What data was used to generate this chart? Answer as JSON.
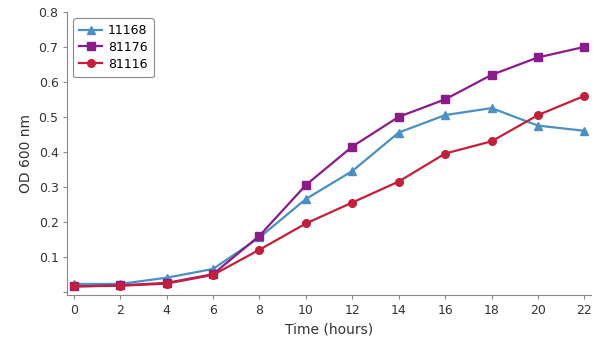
{
  "title": "",
  "xlabel": "Time (hours)",
  "ylabel": "OD 600 nm",
  "xlim": [
    -0.3,
    22.3
  ],
  "ylim": [
    -0.01,
    0.8
  ],
  "xticks": [
    0,
    2,
    4,
    6,
    8,
    10,
    12,
    14,
    16,
    18,
    20,
    22
  ],
  "yticks": [
    0.0,
    0.1,
    0.2,
    0.3,
    0.4,
    0.5,
    0.6,
    0.7,
    0.8
  ],
  "ytick_labels": [
    "",
    "0.1",
    "0.2",
    "0.3",
    "0.4",
    "0.5",
    "0.6",
    "0.7",
    "0.8"
  ],
  "series": [
    {
      "label": "11168",
      "color": "#4a90c4",
      "marker": "^",
      "x": [
        0,
        2,
        4,
        6,
        8,
        10,
        12,
        14,
        16,
        18,
        20,
        22
      ],
      "y": [
        0.022,
        0.022,
        0.04,
        0.065,
        0.155,
        0.265,
        0.345,
        0.455,
        0.505,
        0.525,
        0.475,
        0.46
      ]
    },
    {
      "label": "81176",
      "color": "#8b1a8b",
      "marker": "s",
      "x": [
        0,
        2,
        4,
        6,
        8,
        10,
        12,
        14,
        16,
        18,
        20,
        22
      ],
      "y": [
        0.015,
        0.018,
        0.025,
        0.05,
        0.16,
        0.305,
        0.415,
        0.5,
        0.55,
        0.62,
        0.67,
        0.7
      ]
    },
    {
      "label": "81116",
      "color": "#c41e3a",
      "marker": "o",
      "x": [
        0,
        2,
        4,
        6,
        8,
        10,
        12,
        14,
        16,
        18,
        20,
        22
      ],
      "y": [
        0.015,
        0.017,
        0.023,
        0.048,
        0.12,
        0.195,
        0.255,
        0.315,
        0.395,
        0.43,
        0.505,
        0.56
      ]
    }
  ],
  "background_color": "#ffffff",
  "legend_loc": "upper left",
  "linewidth": 1.6,
  "markersize": 5.5,
  "spine_color": "#888888",
  "tick_color": "#888888",
  "label_fontsize": 10,
  "tick_fontsize": 9,
  "legend_fontsize": 9
}
